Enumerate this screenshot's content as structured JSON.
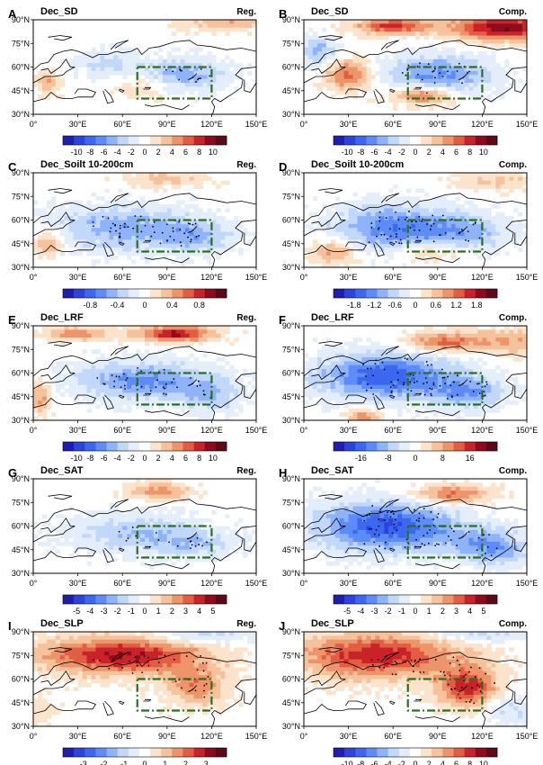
{
  "chart_data": [
    {
      "id": "A",
      "panel_letter": "A",
      "title": "Dec_SD",
      "tag": "Reg.",
      "type": "heatmap",
      "colorbar_ticks": [
        "-10",
        "-8",
        "-6",
        "-4",
        "-2",
        "0",
        "2",
        "4",
        "6",
        "8",
        "10"
      ],
      "pattern": "sd_reg"
    },
    {
      "id": "B",
      "panel_letter": "B",
      "title": "Dec_SD",
      "tag": "Comp.",
      "type": "heatmap",
      "colorbar_ticks": [
        "-10",
        "-8",
        "-6",
        "-4",
        "-2",
        "0",
        "2",
        "4",
        "6",
        "8",
        "10"
      ],
      "pattern": "sd_comp"
    },
    {
      "id": "C",
      "panel_letter": "C",
      "title": "Dec_Soilt 10-200cm",
      "tag": "Reg.",
      "type": "heatmap",
      "colorbar_ticks": [
        "-0.8",
        "-0.4",
        "0",
        "0.4",
        "0.8"
      ],
      "pattern": "soil_reg"
    },
    {
      "id": "D",
      "panel_letter": "D",
      "title": "Dec_Soilt 10-200cm",
      "tag": "Comp.",
      "type": "heatmap",
      "colorbar_ticks": [
        "-1.8",
        "-1.2",
        "-0.6",
        "0",
        "0.6",
        "1.2",
        "1.8"
      ],
      "pattern": "soil_comp"
    },
    {
      "id": "E",
      "panel_letter": "E",
      "title": "Dec_LRF",
      "tag": "Reg.",
      "type": "heatmap",
      "colorbar_ticks": [
        "-10",
        "-8",
        "-6",
        "-4",
        "-2",
        "0",
        "2",
        "4",
        "6",
        "8",
        "10"
      ],
      "pattern": "lrf_reg"
    },
    {
      "id": "F",
      "panel_letter": "F",
      "title": "Dec_LRF",
      "tag": "Comp.",
      "type": "heatmap",
      "colorbar_ticks": [
        "-16",
        "-8",
        "0",
        "8",
        "16"
      ],
      "pattern": "lrf_comp"
    },
    {
      "id": "G",
      "panel_letter": "G",
      "title": "Dec_SAT",
      "tag": "Reg.",
      "type": "heatmap",
      "colorbar_ticks": [
        "-5",
        "-4",
        "-3",
        "-2",
        "-1",
        "0",
        "1",
        "2",
        "3",
        "4",
        "5"
      ],
      "pattern": "sat_reg"
    },
    {
      "id": "H",
      "panel_letter": "H",
      "title": "Dec_SAT",
      "tag": "Comp.",
      "type": "heatmap",
      "colorbar_ticks": [
        "-5",
        "-4",
        "-3",
        "-2",
        "-1",
        "0",
        "1",
        "2",
        "3",
        "4",
        "5"
      ],
      "pattern": "sat_comp"
    },
    {
      "id": "I",
      "panel_letter": "I",
      "title": "Dec_SLP",
      "tag": "Reg.",
      "type": "heatmap",
      "colorbar_ticks": [
        "-3",
        "-2",
        "-1",
        "0",
        "1",
        "2",
        "3"
      ],
      "pattern": "slp_reg"
    },
    {
      "id": "J",
      "panel_letter": "J",
      "title": "Dec_SLP",
      "tag": "Comp.",
      "type": "heatmap",
      "colorbar_ticks": [
        "-10",
        "-8",
        "-6",
        "-4",
        "-2",
        "0",
        "2",
        "4",
        "6",
        "8",
        "10"
      ],
      "pattern": "slp_comp"
    }
  ],
  "map": {
    "lon_ticks": [
      "0°",
      "30°E",
      "60°E",
      "90°E",
      "120°E",
      "150°E"
    ],
    "lat_ticks": [
      "90°N",
      "75°N",
      "60°N",
      "45°N",
      "30°N"
    ],
    "lon_range": [
      0,
      150
    ],
    "lat_range": [
      30,
      90
    ],
    "box_region": {
      "lon": [
        70,
        120
      ],
      "lat": [
        40,
        60
      ]
    }
  },
  "colors": {
    "scale": [
      "#1f1faf",
      "#2d44dc",
      "#3b68ef",
      "#5d8cf8",
      "#8fb3fb",
      "#c2d8fb",
      "#e4eefb",
      "#ffffff",
      "#fbe3cc",
      "#f6c29c",
      "#ee946b",
      "#e35d43",
      "#c9232a",
      "#8e0a1c",
      "#5c0a18"
    ],
    "box": "#2c6e1f",
    "coast": "#000000"
  }
}
